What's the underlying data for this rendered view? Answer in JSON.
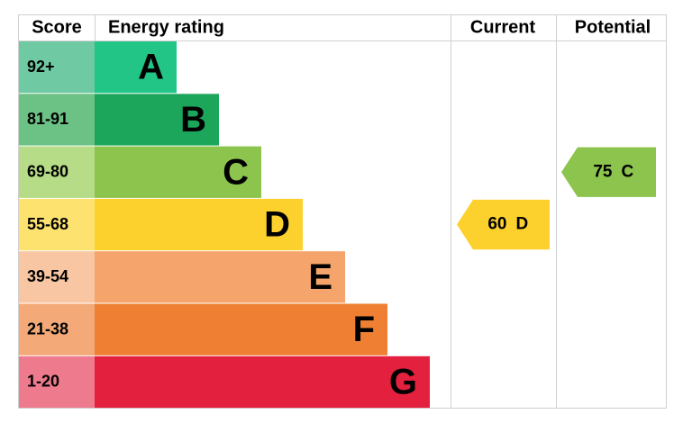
{
  "header": {
    "columns": [
      "Score",
      "Energy rating",
      "Current",
      "Potential"
    ]
  },
  "bands": [
    {
      "score": "92+",
      "letter": "A",
      "color": "#22c585",
      "light": "#6fcaa3"
    },
    {
      "score": "81-91",
      "letter": "B",
      "color": "#1ca65b",
      "light": "#6cc184"
    },
    {
      "score": "69-80",
      "letter": "C",
      "color": "#8cc44d",
      "light": "#b6dc87"
    },
    {
      "score": "55-68",
      "letter": "D",
      "color": "#fdd12d",
      "light": "#fde26f"
    },
    {
      "score": "39-54",
      "letter": "E",
      "color": "#f5a56c",
      "light": "#f8c6a2"
    },
    {
      "score": "21-38",
      "letter": "F",
      "color": "#ef7f32",
      "light": "#f3aa78"
    },
    {
      "score": "1-20",
      "letter": "G",
      "color": "#e3203e",
      "light": "#ee7a8d"
    }
  ],
  "current": {
    "value": 60,
    "letter": "D"
  },
  "potential": {
    "value": 75,
    "letter": "C"
  }
}
